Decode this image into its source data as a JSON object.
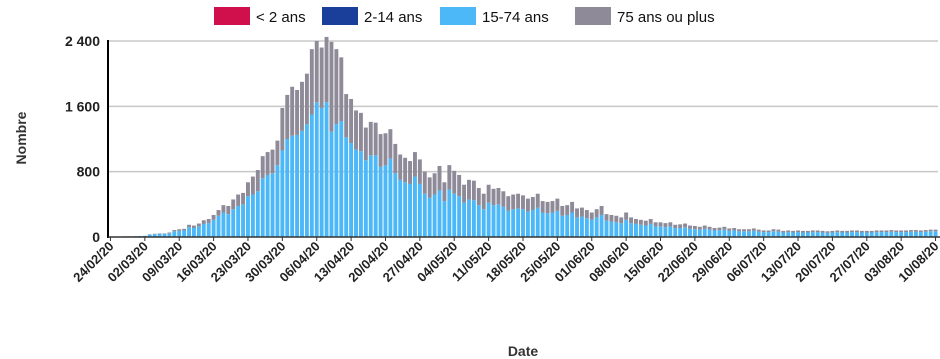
{
  "chart_data": {
    "type": "bar",
    "stacked": true,
    "xlabel": "Date",
    "ylabel": "Nombre",
    "ylim": [
      0,
      2400
    ],
    "yticks": [
      0,
      800,
      1600,
      2400
    ],
    "ytick_labels": [
      "0",
      "800",
      "1 600",
      "2 400"
    ],
    "grid": "horizontal",
    "legend_position": "top",
    "start_date": "24/02/20",
    "end_date": "10/08/20",
    "xtick_labels": [
      "24/02/20",
      "02/03/20",
      "09/03/20",
      "16/03/20",
      "23/03/20",
      "30/03/20",
      "06/04/20",
      "13/04/20",
      "20/04/20",
      "27/04/20",
      "04/05/20",
      "11/05/20",
      "18/05/20",
      "25/05/20",
      "01/06/20",
      "08/06/20",
      "15/06/20",
      "22/06/20",
      "29/06/20",
      "06/07/20",
      "13/07/20",
      "20/07/20",
      "27/07/20",
      "03/08/20",
      "10/08/20"
    ],
    "colors": {
      "<2": "#d0104c",
      "2-14": "#1a3f9a",
      "15-74": "#4db8f8",
      "75+": "#8e8a98"
    },
    "series": [
      {
        "name": "< 2 ans",
        "key": "<2",
        "values": [
          0,
          0,
          0,
          0,
          0,
          0,
          0,
          0,
          0,
          0,
          0,
          0,
          0,
          0,
          0,
          0,
          0,
          0,
          0,
          0,
          0,
          0,
          0,
          0,
          0,
          0,
          0,
          0,
          0,
          0,
          0,
          0,
          0,
          0,
          0,
          0,
          0,
          0,
          0,
          0,
          0,
          0,
          0,
          0,
          0,
          0,
          0,
          0,
          0,
          0,
          0,
          0,
          0,
          0,
          0,
          0,
          0,
          0,
          0,
          0,
          0,
          0,
          0,
          0,
          0,
          0,
          0,
          0,
          0,
          0,
          0,
          0,
          0,
          0,
          0,
          0,
          0,
          0,
          0,
          0,
          0,
          0,
          0,
          0,
          0,
          0,
          0,
          0,
          0,
          0,
          0,
          0,
          0,
          0,
          0,
          0,
          0,
          0,
          0,
          0,
          0,
          0,
          0,
          0,
          0,
          0,
          0,
          0,
          0,
          0,
          0,
          0,
          0,
          0,
          0,
          0,
          0,
          0,
          0,
          0,
          0,
          0,
          0,
          0,
          0,
          0,
          0,
          0,
          0,
          0,
          0,
          0,
          0,
          0,
          0,
          0,
          0,
          0,
          0,
          0,
          0,
          0,
          0,
          0,
          0,
          0,
          0,
          0,
          0,
          0,
          0,
          0,
          0,
          0,
          0,
          0,
          0,
          0,
          0,
          0,
          0,
          0,
          0,
          0,
          0,
          0,
          0,
          0,
          0
        ]
      },
      {
        "name": "2-14 ans",
        "key": "2-14",
        "values": [
          0,
          0,
          0,
          0,
          0,
          0,
          0,
          0,
          0,
          0,
          0,
          0,
          0,
          0,
          0,
          0,
          0,
          0,
          0,
          0,
          0,
          0,
          0,
          0,
          0,
          0,
          0,
          0,
          0,
          0,
          0,
          0,
          0,
          0,
          0,
          0,
          0,
          0,
          0,
          0,
          0,
          0,
          0,
          0,
          0,
          0,
          0,
          0,
          0,
          0,
          0,
          0,
          0,
          0,
          0,
          0,
          0,
          0,
          0,
          0,
          0,
          0,
          0,
          0,
          0,
          0,
          0,
          0,
          0,
          0,
          0,
          0,
          0,
          0,
          0,
          0,
          0,
          0,
          0,
          0,
          0,
          0,
          0,
          0,
          0,
          0,
          0,
          0,
          0,
          0,
          0,
          0,
          0,
          0,
          0,
          0,
          0,
          0,
          0,
          0,
          0,
          0,
          0,
          0,
          0,
          0,
          0,
          0,
          0,
          0,
          0,
          0,
          0,
          0,
          0,
          0,
          0,
          0,
          0,
          0,
          0,
          0,
          0,
          0,
          0,
          0,
          0,
          0,
          0,
          0,
          0,
          0,
          0,
          0,
          0,
          0,
          0,
          0,
          0,
          0,
          0,
          0,
          0,
          0,
          0,
          0,
          0,
          0,
          0,
          0,
          0,
          0,
          0,
          0,
          0,
          0,
          0,
          0,
          0,
          0,
          0,
          0,
          0,
          0,
          0,
          0,
          0,
          0,
          0
        ]
      },
      {
        "name": "15-74 ans",
        "key": "15-74",
        "values": [
          5,
          5,
          5,
          8,
          8,
          10,
          12,
          15,
          30,
          35,
          40,
          40,
          45,
          70,
          75,
          80,
          120,
          110,
          130,
          160,
          170,
          210,
          260,
          300,
          280,
          340,
          380,
          400,
          500,
          520,
          560,
          720,
          760,
          780,
          880,
          1060,
          1200,
          1240,
          1250,
          1300,
          1380,
          1500,
          1650,
          1580,
          1650,
          1290,
          1380,
          1420,
          1220,
          1150,
          1070,
          1050,
          940,
          1000,
          1000,
          860,
          880,
          960,
          780,
          700,
          670,
          650,
          740,
          650,
          530,
          480,
          520,
          570,
          440,
          580,
          530,
          500,
          420,
          460,
          450,
          390,
          340,
          420,
          390,
          400,
          370,
          320,
          340,
          350,
          340,
          310,
          330,
          360,
          300,
          290,
          300,
          320,
          260,
          270,
          300,
          240,
          250,
          230,
          210,
          240,
          270,
          200,
          190,
          180,
          170,
          210,
          170,
          160,
          150,
          140,
          160,
          130,
          130,
          120,
          130,
          110,
          110,
          120,
          100,
          95,
          90,
          100,
          90,
          80,
          85,
          90,
          75,
          80,
          70,
          70,
          70,
          75,
          65,
          60,
          60,
          70,
          65,
          55,
          60,
          55,
          60,
          55,
          55,
          60,
          60,
          55,
          50,
          55,
          60,
          55,
          55,
          60,
          60,
          55,
          55,
          55,
          60,
          60,
          60,
          65,
          60,
          60,
          60,
          65,
          65,
          60,
          65,
          70,
          70,
          75,
          80,
          80,
          70
        ]
      },
      {
        "name": "75 ans ou plus",
        "key": "75+",
        "values": [
          0,
          0,
          0,
          0,
          0,
          0,
          0,
          0,
          3,
          5,
          5,
          5,
          10,
          15,
          20,
          20,
          30,
          30,
          35,
          45,
          50,
          60,
          70,
          90,
          100,
          120,
          140,
          140,
          170,
          220,
          260,
          270,
          280,
          290,
          300,
          520,
          540,
          600,
          550,
          600,
          620,
          800,
          750,
          740,
          800,
          1100,
          920,
          780,
          530,
          540,
          480,
          470,
          400,
          410,
          400,
          400,
          390,
          360,
          360,
          310,
          300,
          280,
          300,
          300,
          270,
          250,
          260,
          300,
          230,
          300,
          280,
          260,
          220,
          240,
          240,
          210,
          190,
          220,
          200,
          200,
          190,
          180,
          180,
          180,
          170,
          160,
          160,
          170,
          140,
          140,
          140,
          150,
          120,
          120,
          130,
          110,
          110,
          100,
          90,
          100,
          110,
          80,
          80,
          80,
          70,
          90,
          70,
          60,
          60,
          60,
          60,
          50,
          50,
          50,
          50,
          40,
          45,
          45,
          40,
          40,
          35,
          40,
          35,
          30,
          30,
          35,
          30,
          30,
          25,
          25,
          25,
          30,
          25,
          20,
          20,
          25,
          25,
          20,
          20,
          20,
          20,
          20,
          20,
          20,
          20,
          20,
          20,
          20,
          20,
          20,
          20,
          20,
          20,
          20,
          20,
          20,
          20,
          20,
          20,
          20,
          20,
          20,
          20,
          20,
          20,
          20,
          20,
          20,
          20,
          20,
          20,
          20,
          20
        ]
      }
    ]
  }
}
